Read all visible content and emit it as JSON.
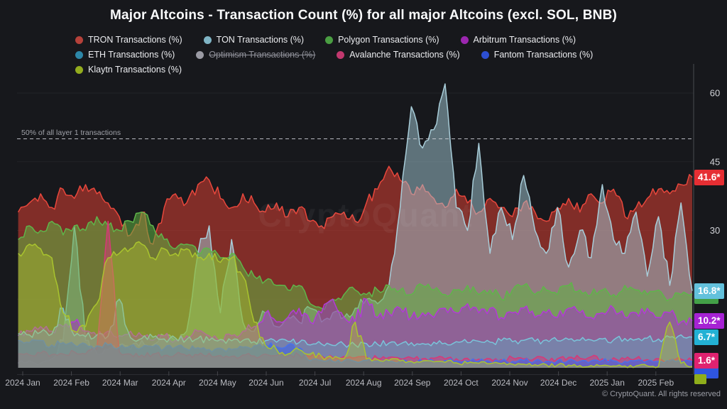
{
  "title": "Major Altcoins - Transaction Count (%) for all major Altcoins (excl. SOL, BNB)",
  "watermark": "CryptoQuant",
  "copyright": "© CryptoQuant. All rights reserved",
  "annotation": {
    "label": "50% of all layer 1 transactions",
    "value": 50
  },
  "legend": [
    {
      "name": "TRON Transactions (%)",
      "color": "#b5413a",
      "disabled": false
    },
    {
      "name": "TON Transactions (%)",
      "color": "#7fb4c5",
      "disabled": false
    },
    {
      "name": "Polygon Transactions (%)",
      "color": "#4a9e42",
      "disabled": false
    },
    {
      "name": "Arbitrum Transactions (%)",
      "color": "#9c27b0",
      "disabled": false
    },
    {
      "name": "ETH Transactions (%)",
      "color": "#2d87a8",
      "disabled": false
    },
    {
      "name": "Optimism Transactions (%)",
      "color": "#9a9aa3",
      "disabled": true
    },
    {
      "name": "Avalanche Transactions (%)",
      "color": "#c2386e",
      "disabled": false
    },
    {
      "name": "Fantom Transactions (%)",
      "color": "#2d4fd2",
      "disabled": false
    },
    {
      "name": "Klaytn Transactions (%)",
      "color": "#93ac1e",
      "disabled": false
    }
  ],
  "y_axis": {
    "visible_ticks": [
      60,
      45,
      30
    ],
    "grid_values": [
      15,
      30,
      45,
      60
    ]
  },
  "x_axis": {
    "labels": [
      "2024 Jan",
      "2024 Feb",
      "2024 Mar",
      "2024 Apr",
      "2024 May",
      "2024 Jun",
      "2024 Jul",
      "2024 Aug",
      "2024 Sep",
      "2024 Oct",
      "2024 Nov",
      "2024 Dec",
      "2025 Jan",
      "2025 Feb"
    ]
  },
  "badges": [
    {
      "series": "TRON",
      "label": "41.6*",
      "value": 41.6,
      "color": "#e62e33",
      "hidden": false
    },
    {
      "series": "TON",
      "label": "16.8*",
      "value": 16.8,
      "color": "#63c1dc",
      "hidden": false
    },
    {
      "series": "Polygon",
      "label": "",
      "value": 16.2,
      "color": "#43a047",
      "hidden": true
    },
    {
      "series": "Arbitrum",
      "label": "10.2*",
      "value": 10.2,
      "color": "#a622d4",
      "hidden": false
    },
    {
      "series": "ETH",
      "label": "6.7*",
      "value": 6.7,
      "color": "#23b1d4",
      "hidden": false
    },
    {
      "series": "Avalanche",
      "label": "1.6*",
      "value": 1.6,
      "color": "#e02270",
      "hidden": false
    },
    {
      "series": "Fantom",
      "label": "",
      "value": 1.4,
      "color": "#2f55e0",
      "hidden": true
    },
    {
      "series": "Klaytn",
      "label": "",
      "value": 0.3,
      "color": "#8fae1b",
      "hidden": true
    }
  ],
  "chart_data": {
    "type": "area",
    "mode": "overlapping-transparent",
    "x_unit": "weeks since 2024-01-01",
    "x_range_labels": [
      "2024 Jan",
      "2025 Feb"
    ],
    "ylim": [
      0,
      65
    ],
    "grid": true,
    "legend_position": "top",
    "annotation_line": {
      "y": 50,
      "style": "dashed",
      "label": "50% of all layer 1 transactions"
    },
    "series": [
      {
        "name": "TRON Transactions (%)",
        "stroke": "#e8473c",
        "fill": "rgba(227,66,52,0.52)",
        "end_label": "41.6*",
        "values": [
          34,
          36,
          38,
          35,
          39,
          37,
          40,
          38,
          36,
          33,
          29,
          34,
          27,
          35,
          38,
          36,
          40,
          41,
          37,
          35,
          38,
          36,
          34,
          36,
          33,
          35,
          32,
          31,
          33,
          34,
          32,
          36,
          39,
          44,
          41,
          38,
          40,
          37,
          35,
          39,
          36,
          34,
          37,
          35,
          33,
          36,
          34,
          32,
          35,
          37,
          34,
          38,
          36,
          39,
          33,
          35,
          37,
          39,
          38,
          40,
          41.6
        ]
      },
      {
        "name": "TON Transactions (%)",
        "stroke": "#a8cdd9",
        "fill": "rgba(166,204,216,0.5)",
        "end_label": "16.8*",
        "values": [
          1,
          1.5,
          1,
          2,
          6,
          31,
          6,
          3,
          4,
          5,
          4,
          6,
          5,
          7,
          6,
          8,
          25,
          31,
          12,
          28,
          10,
          8,
          12,
          9,
          11,
          10,
          13,
          10,
          12,
          11,
          13,
          15,
          14,
          18,
          35,
          57,
          48,
          52,
          62,
          35,
          30,
          49,
          25,
          35,
          28,
          42,
          30,
          25,
          35,
          22,
          30,
          24,
          40,
          28,
          25,
          34,
          20,
          33,
          18,
          36,
          16.8
        ]
      },
      {
        "name": "Polygon Transactions (%)",
        "stroke": "#5fb54a",
        "fill": "rgba(96,178,66,0.55)",
        "end_label": "16.2",
        "values": [
          28,
          31,
          30,
          32,
          29,
          31,
          30,
          33,
          31,
          30,
          32,
          34,
          31,
          28,
          26,
          27,
          25,
          26,
          24,
          25,
          22,
          20,
          19,
          18,
          17,
          18,
          14,
          13,
          15,
          16,
          17,
          16,
          17,
          18,
          17,
          16,
          18,
          17,
          16,
          17,
          18,
          16,
          17,
          15,
          17,
          18,
          16,
          17,
          16,
          18,
          17,
          16,
          17,
          16,
          18,
          17,
          16,
          17,
          15,
          16,
          16.2
        ]
      },
      {
        "name": "Arbitrum Transactions (%)",
        "stroke": "#b23bd6",
        "fill": "rgba(168,42,205,0.5)",
        "end_label": "10.2*",
        "values": [
          7,
          8,
          9,
          8,
          9,
          10,
          8,
          7,
          8,
          7,
          8,
          7,
          6,
          7,
          6,
          7,
          8,
          7,
          6,
          7,
          8,
          9,
          12,
          10,
          11,
          13,
          10,
          12,
          15,
          11,
          10,
          15,
          11,
          12,
          13,
          11,
          12,
          11,
          13,
          12,
          14,
          12,
          13,
          11,
          12,
          13,
          11,
          12,
          11,
          13,
          12,
          11,
          12,
          13,
          11,
          12,
          13,
          11,
          12,
          10,
          10.2
        ]
      },
      {
        "name": "ETH Transactions (%)",
        "stroke": "#79c4da",
        "fill": "rgba(96,168,192,0.45)",
        "end_label": "6.7*",
        "values": [
          7.5,
          7.2,
          7.8,
          7.4,
          13,
          7,
          6.8,
          7.2,
          6.9,
          15,
          6.6,
          6.4,
          6.7,
          6.3,
          6.5,
          6.2,
          6.4,
          6,
          6.2,
          5.9,
          6,
          5.7,
          5.9,
          5.6,
          5.8,
          5.5,
          5,
          5.2,
          4.9,
          5.1,
          5,
          5.3,
          5.1,
          5.4,
          5.2,
          5.5,
          5.3,
          5.6,
          5.4,
          5.7,
          5.5,
          5.8,
          5.6,
          5.9,
          5.7,
          6,
          5.8,
          6.1,
          5.9,
          6.2,
          6,
          6.1,
          6.3,
          6.1,
          6.4,
          6.2,
          6.5,
          6.3,
          6.7,
          7.2,
          6.7
        ]
      },
      {
        "name": "Avalanche Transactions (%)",
        "stroke": "#d83878",
        "fill": "rgba(216,56,120,0.5)",
        "end_label": "1.6*",
        "values": [
          3,
          2.8,
          3.2,
          2.9,
          3,
          3.5,
          3,
          4,
          32,
          3.5,
          3,
          2.8,
          3,
          2.7,
          2.9,
          2.6,
          2.8,
          3.2,
          2.7,
          2.5,
          2.8,
          2.6,
          3,
          2.7,
          2.5,
          2.8,
          2.4,
          2.6,
          2.3,
          2.5,
          2.2,
          2.4,
          2.1,
          2.3,
          2,
          2.2,
          2,
          2.1,
          1.9,
          2,
          2.1,
          1.9,
          2,
          1.8,
          2.2,
          1.9,
          2.1,
          1.8,
          2,
          2.3,
          2.1,
          2.4,
          2,
          2.2,
          1.9,
          2.1,
          1.8,
          2,
          1.7,
          1.9,
          1.6
        ]
      },
      {
        "name": "Fantom Transactions (%)",
        "stroke": "#4a71e8",
        "fill": "rgba(64,100,228,0.62)",
        "end_label": "1.4",
        "values": [
          6,
          5.5,
          6,
          5,
          5.5,
          5,
          5.2,
          4.8,
          5,
          4.5,
          4.8,
          4.4,
          4.6,
          4.2,
          4.5,
          4.1,
          4.4,
          4,
          4.3,
          4,
          4.5,
          4.8,
          5.2,
          4.6,
          5,
          4.4,
          1.5,
          1.6,
          1.4,
          1.5,
          1.4,
          1.6,
          1.5,
          1.4,
          1.5,
          1.3,
          1.5,
          1.4,
          1.6,
          1.5,
          1.4,
          1.5,
          1.3,
          1.5,
          1.4,
          1.6,
          1.5,
          1.4,
          1.5,
          1.6,
          1.4,
          1.5,
          1.6,
          1.5,
          1.4,
          1.6,
          1.5,
          1.4,
          1.5,
          1.3,
          1.4
        ]
      },
      {
        "name": "Klaytn Transactions (%)",
        "stroke": "#a9c42e",
        "fill": "rgba(176,196,48,0.4)",
        "end_label": "0.3",
        "values": [
          25,
          27,
          26,
          24,
          12,
          8,
          9,
          14,
          24,
          25,
          26,
          27,
          24,
          26,
          25,
          26,
          24,
          25,
          23,
          24,
          20,
          10,
          5,
          4,
          3,
          4,
          3,
          2.5,
          2,
          2,
          10,
          2,
          1.8,
          1.6,
          1.5,
          1.4,
          1.5,
          1.3,
          1.2,
          1.1,
          1,
          1,
          0.9,
          0.9,
          0.8,
          0.8,
          0.7,
          0.7,
          0.6,
          0.6,
          0.5,
          0.5,
          0.5,
          0.4,
          0.4,
          0.4,
          0.4,
          0.3,
          10,
          1,
          0.3
        ]
      }
    ]
  }
}
